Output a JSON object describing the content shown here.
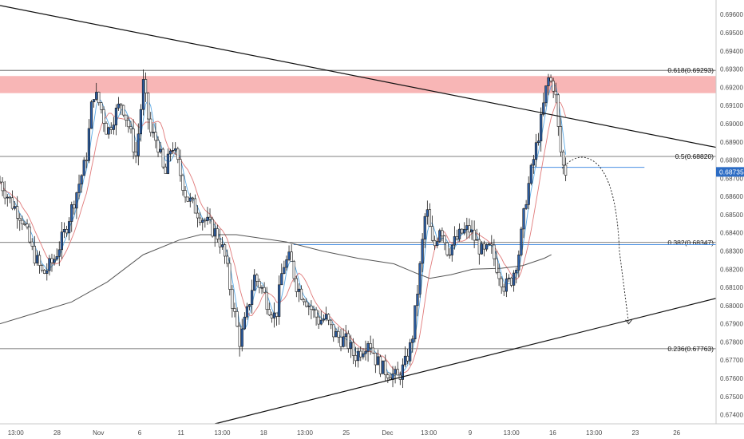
{
  "chart_data": {
    "type": "candlestick",
    "y_axis": {
      "min": 0.6735,
      "max": 0.6968,
      "ticks": [
        "0.69600",
        "0.69500",
        "0.69400",
        "0.69300",
        "0.69200",
        "0.69100",
        "0.69000",
        "0.68900",
        "0.68800",
        "0.68700",
        "0.68600",
        "0.68500",
        "0.68400",
        "0.68300",
        "0.68200",
        "0.68100",
        "0.68000",
        "0.67900",
        "0.67800",
        "0.67700",
        "0.67600",
        "0.67500",
        "0.67400"
      ],
      "position": "right"
    },
    "x_axis": {
      "labels": [
        "13:00",
        "28",
        "Nov",
        "6",
        "11",
        "13:00",
        "18",
        "13:00",
        "25",
        "Dec",
        "13:00",
        "9",
        "13:00",
        "16",
        "13:00",
        "23",
        "26"
      ]
    },
    "last_price_label": "0.68735",
    "last_price": 0.68735,
    "colors": {
      "bull_body": "#2c5fa8",
      "bear_body": "#ffffff",
      "wick": "#1a1a1a",
      "resistance_zone": "#f7a9a9",
      "ma_fast": "#5aa9e6",
      "ma_mid": "#e07a7a",
      "ma_slow": "#555555",
      "fib_line": "#555555",
      "blue_level": "#4a90e2"
    },
    "resistance_zone": {
      "low": 0.69168,
      "high": 0.69262
    },
    "fib_levels": [
      {
        "label": "0.618(0.69293)",
        "value": 0.69293
      },
      {
        "label": "0.5(0.68820)",
        "value": 0.6882
      },
      {
        "label": "0.382(0.68347)",
        "value": 0.68347
      },
      {
        "label": "0.236(0.67763)",
        "value": 0.67763
      }
    ],
    "blue_levels": [
      {
        "value": 0.68335,
        "from_x": 0.41,
        "to_x": 1.0
      },
      {
        "value": 0.6876,
        "from_x": 0.74,
        "to_x": 0.9
      }
    ],
    "trendlines": [
      {
        "name": "descending",
        "x1": 0.0,
        "y1": 0.6965,
        "x2": 1.0,
        "y2": 0.6887
      },
      {
        "name": "ascending",
        "x1": 0.3,
        "y1": 0.6735,
        "x2": 1.0,
        "y2": 0.6804
      }
    ],
    "projection": {
      "points": [
        [
          0.785,
          0.68755
        ],
        [
          0.815,
          0.68815
        ],
        [
          0.845,
          0.6875
        ],
        [
          0.865,
          0.683
        ],
        [
          0.878,
          0.679
        ]
      ]
    },
    "ma_slow": [
      [
        0.0,
        0.679
      ],
      [
        0.05,
        0.6796
      ],
      [
        0.1,
        0.6802
      ],
      [
        0.15,
        0.6813
      ],
      [
        0.2,
        0.6828
      ],
      [
        0.25,
        0.6836
      ],
      [
        0.28,
        0.6839
      ],
      [
        0.33,
        0.6839
      ],
      [
        0.4,
        0.6835
      ],
      [
        0.45,
        0.683
      ],
      [
        0.5,
        0.6826
      ],
      [
        0.55,
        0.6823
      ],
      [
        0.58,
        0.6818
      ],
      [
        0.6,
        0.6815
      ],
      [
        0.63,
        0.6817
      ],
      [
        0.66,
        0.682
      ],
      [
        0.7,
        0.68205
      ],
      [
        0.73,
        0.6822
      ],
      [
        0.76,
        0.6826
      ],
      [
        0.77,
        0.6828
      ]
    ]
  },
  "candles_path_points": [
    [
      0.0,
      0.6868
    ],
    [
      0.015,
      0.6857
    ],
    [
      0.03,
      0.6849
    ],
    [
      0.045,
      0.683
    ],
    [
      0.06,
      0.6817
    ],
    [
      0.075,
      0.6825
    ],
    [
      0.09,
      0.684
    ],
    [
      0.105,
      0.686
    ],
    [
      0.12,
      0.688
    ],
    [
      0.13,
      0.6918
    ],
    [
      0.14,
      0.691
    ],
    [
      0.15,
      0.6895
    ],
    [
      0.16,
      0.6905
    ],
    [
      0.17,
      0.6912
    ],
    [
      0.18,
      0.6898
    ],
    [
      0.19,
      0.6882
    ],
    [
      0.2,
      0.6922
    ],
    [
      0.21,
      0.6895
    ],
    [
      0.22,
      0.689
    ],
    [
      0.23,
      0.687
    ],
    [
      0.24,
      0.689
    ],
    [
      0.25,
      0.6875
    ],
    [
      0.26,
      0.686
    ],
    [
      0.275,
      0.6852
    ],
    [
      0.29,
      0.6845
    ],
    [
      0.305,
      0.6838
    ],
    [
      0.315,
      0.6825
    ],
    [
      0.325,
      0.68
    ],
    [
      0.335,
      0.678
    ],
    [
      0.345,
      0.6796
    ],
    [
      0.355,
      0.6816
    ],
    [
      0.365,
      0.681
    ],
    [
      0.375,
      0.68
    ],
    [
      0.385,
      0.6793
    ],
    [
      0.395,
      0.6822
    ],
    [
      0.405,
      0.6826
    ],
    [
      0.415,
      0.681
    ],
    [
      0.425,
      0.6805
    ],
    [
      0.435,
      0.6798
    ],
    [
      0.445,
      0.6792
    ],
    [
      0.455,
      0.6793
    ],
    [
      0.465,
      0.6785
    ],
    [
      0.475,
      0.6782
    ],
    [
      0.485,
      0.678
    ],
    [
      0.495,
      0.6772
    ],
    [
      0.505,
      0.6776
    ],
    [
      0.515,
      0.6782
    ],
    [
      0.525,
      0.677
    ],
    [
      0.535,
      0.6765
    ],
    [
      0.545,
      0.6763
    ],
    [
      0.555,
      0.676
    ],
    [
      0.565,
      0.6767
    ],
    [
      0.575,
      0.678
    ],
    [
      0.585,
      0.6815
    ],
    [
      0.595,
      0.6855
    ],
    [
      0.605,
      0.683
    ],
    [
      0.615,
      0.6845
    ],
    [
      0.625,
      0.683
    ],
    [
      0.635,
      0.6835
    ],
    [
      0.645,
      0.684
    ],
    [
      0.655,
      0.6842
    ],
    [
      0.665,
      0.6835
    ],
    [
      0.675,
      0.6828
    ],
    [
      0.685,
      0.6832
    ],
    [
      0.695,
      0.682
    ],
    [
      0.705,
      0.681
    ],
    [
      0.715,
      0.6815
    ],
    [
      0.725,
      0.683
    ],
    [
      0.735,
      0.686
    ],
    [
      0.745,
      0.688
    ],
    [
      0.755,
      0.69
    ],
    [
      0.765,
      0.6925
    ],
    [
      0.775,
      0.692
    ],
    [
      0.78,
      0.6895
    ],
    [
      0.785,
      0.6878
    ],
    [
      0.79,
      0.68735
    ]
  ]
}
